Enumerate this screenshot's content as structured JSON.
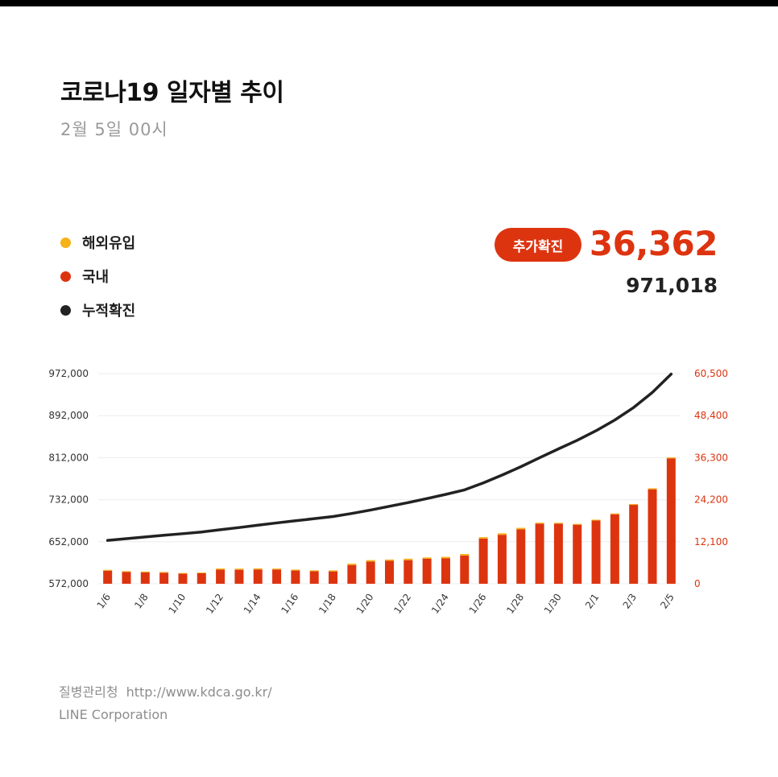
{
  "header": {
    "title": "코로나19 일자별 추이",
    "subtitle": "2월 5일 00시"
  },
  "legend": [
    {
      "label": "해외유입",
      "color": "#f6b21b"
    },
    {
      "label": "국내",
      "color": "#dd3410"
    },
    {
      "label": "누적확진",
      "color": "#222222"
    }
  ],
  "summary": {
    "badge_label": "추가확진",
    "added_value": "36,362",
    "total_value": "971,018"
  },
  "footer": {
    "source_name": "질병관리청",
    "source_url": "http://www.kdca.go.kr/",
    "company": "LINE Corporation"
  },
  "chart_data": {
    "type": "bar",
    "x": [
      "1/6",
      "1/7",
      "1/8",
      "1/9",
      "1/10",
      "1/11",
      "1/12",
      "1/13",
      "1/14",
      "1/15",
      "1/16",
      "1/17",
      "1/18",
      "1/19",
      "1/20",
      "1/21",
      "1/22",
      "1/23",
      "1/24",
      "1/25",
      "1/26",
      "1/27",
      "1/28",
      "1/29",
      "1/30",
      "1/31",
      "2/1",
      "2/2",
      "2/3",
      "2/4",
      "2/5"
    ],
    "x_tick_labels": [
      "1/6",
      "1/8",
      "1/10",
      "1/12",
      "1/14",
      "1/16",
      "1/18",
      "1/20",
      "1/22",
      "1/24",
      "1/26",
      "1/28",
      "1/30",
      "2/1",
      "2/3",
      "2/5"
    ],
    "series": [
      {
        "name": "해외유입",
        "type": "bar",
        "axis": "right",
        "color": "#f6b21b",
        "values": [
          250,
          220,
          230,
          210,
          200,
          210,
          330,
          320,
          300,
          280,
          270,
          260,
          300,
          390,
          400,
          380,
          420,
          380,
          440,
          470,
          430,
          430,
          400,
          280,
          250,
          240,
          250,
          240,
          270,
          300,
          280
        ]
      },
      {
        "name": "국내",
        "type": "bar",
        "axis": "right",
        "color": "#dd3410",
        "values": [
          3760,
          3420,
          3290,
          3180,
          2890,
          3030,
          4060,
          4030,
          4120,
          4100,
          3810,
          3600,
          3560,
          5400,
          6400,
          6600,
          6800,
          7200,
          7300,
          8100,
          13000,
          14100,
          15700,
          17300,
          17300,
          17000,
          18200,
          20000,
          22700,
          27200,
          36100
        ]
      },
      {
        "name": "누적확진",
        "type": "line",
        "axis": "left",
        "color": "#222222",
        "values": [
          654500,
          657800,
          661100,
          664300,
          667300,
          670500,
          674800,
          679000,
          683500,
          687800,
          691900,
          695900,
          700000,
          705800,
          712300,
          719400,
          726500,
          734200,
          742100,
          750700,
          764000,
          778900,
          794800,
          811900,
          828700,
          845100,
          863200,
          883700,
          907400,
          936100,
          971000
        ]
      }
    ],
    "y_left": {
      "ticks": [
        "572,000",
        "652,000",
        "732,000",
        "812,000",
        "892,000",
        "972,000"
      ],
      "range": [
        572000,
        972000
      ]
    },
    "y_right": {
      "ticks": [
        "0",
        "12,100",
        "24,200",
        "36,300",
        "48,400",
        "60,500"
      ],
      "range": [
        0,
        60500
      ]
    },
    "grid": true
  }
}
